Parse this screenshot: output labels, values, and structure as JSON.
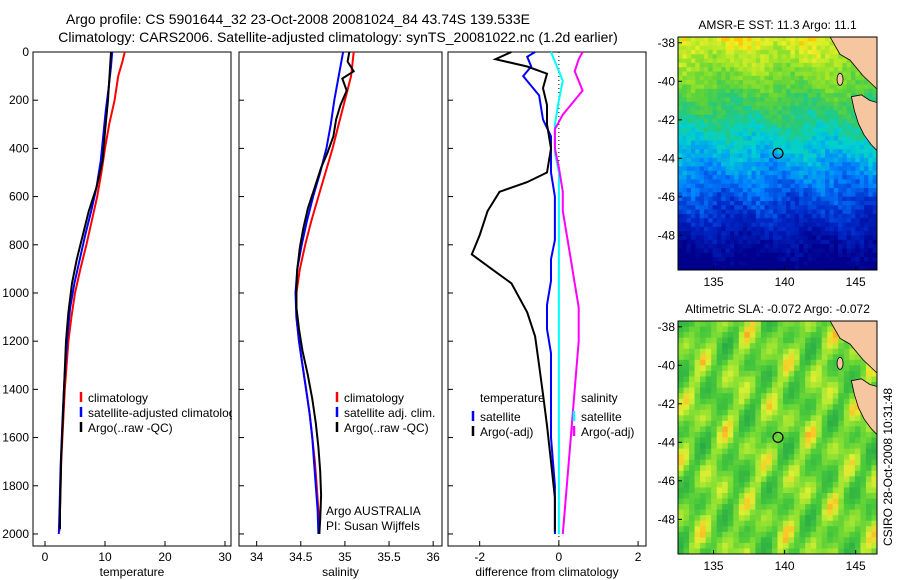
{
  "header": {
    "title_line1": "Argo profile: CS 5901644_32 23-Oct-2008 20081024_84 43.74S 139.533E",
    "title_line2": "Climatology: CARS2006. Satellite-adjusted climatology: synTS_20081022.nc (1.2d earlier)"
  },
  "side_label": "CSIRO 28-Oct-2008 10:31:48",
  "colors": {
    "climatology": "#ff0000",
    "satellite": "#0000ff",
    "argo": "#000000",
    "salinity_satellite": "#00ffff",
    "salinity_argo": "#ff00ff",
    "land": "#f5c6a0"
  },
  "chart_data": [
    {
      "id": "temperature",
      "type": "line",
      "xlabel": "temperature",
      "ylabel": "",
      "xlim": [
        -2,
        31
      ],
      "ylim": [
        2050,
        0
      ],
      "xticks": [
        0,
        10,
        20,
        30
      ],
      "yticks": [
        0,
        200,
        400,
        600,
        800,
        1000,
        1200,
        1400,
        1600,
        1800,
        2000
      ],
      "legend": [
        "climatology",
        "satellite-adjusted climatology",
        "Argo(..raw -QC)"
      ],
      "series": [
        {
          "name": "climatology",
          "color": "#ff0000",
          "points": [
            [
              13.3,
              0
            ],
            [
              12.9,
              40
            ],
            [
              12.2,
              100
            ],
            [
              11.6,
              200
            ],
            [
              10.7,
              300
            ],
            [
              10.0,
              400
            ],
            [
              9.4,
              500
            ],
            [
              8.7,
              600
            ],
            [
              7.8,
              700
            ],
            [
              6.9,
              800
            ],
            [
              5.9,
              900
            ],
            [
              5.0,
              1000
            ],
            [
              4.4,
              1100
            ],
            [
              3.9,
              1200
            ],
            [
              3.6,
              1300
            ],
            [
              3.3,
              1400
            ],
            [
              3.1,
              1500
            ],
            [
              2.9,
              1600
            ],
            [
              2.7,
              1700
            ],
            [
              2.6,
              1800
            ],
            [
              2.5,
              1900
            ],
            [
              2.4,
              1990
            ]
          ]
        },
        {
          "name": "satellite-adjusted climatology",
          "color": "#0000ff",
          "points": [
            [
              11.2,
              0
            ],
            [
              11.0,
              60
            ],
            [
              10.6,
              150
            ],
            [
              10.1,
              250
            ],
            [
              9.7,
              350
            ],
            [
              9.3,
              450
            ],
            [
              8.6,
              560
            ],
            [
              7.7,
              660
            ],
            [
              6.7,
              760
            ],
            [
              5.8,
              860
            ],
            [
              4.9,
              960
            ],
            [
              4.2,
              1060
            ],
            [
              3.8,
              1160
            ],
            [
              3.5,
              1260
            ],
            [
              3.2,
              1380
            ],
            [
              3.0,
              1480
            ],
            [
              2.8,
              1600
            ],
            [
              2.6,
              1720
            ],
            [
              2.5,
              1820
            ],
            [
              2.4,
              1920
            ],
            [
              2.3,
              2000
            ]
          ]
        },
        {
          "name": "Argo(..raw -QC)",
          "color": "#000000",
          "points": [
            [
              11.0,
              0
            ],
            [
              10.8,
              80
            ],
            [
              10.5,
              200
            ],
            [
              10.0,
              330
            ],
            [
              9.6,
              450
            ],
            [
              8.6,
              560
            ],
            [
              7.3,
              660
            ],
            [
              6.3,
              760
            ],
            [
              5.3,
              860
            ],
            [
              4.5,
              960
            ],
            [
              3.9,
              1080
            ],
            [
              3.5,
              1200
            ],
            [
              3.3,
              1320
            ],
            [
              3.1,
              1440
            ],
            [
              2.9,
              1560
            ],
            [
              2.7,
              1680
            ],
            [
              2.6,
              1800
            ],
            [
              2.5,
              1900
            ],
            [
              2.5,
              1980
            ]
          ]
        }
      ]
    },
    {
      "id": "salinity",
      "type": "line",
      "xlabel": "salinity",
      "ylabel": "",
      "xlim": [
        33.8,
        36.1
      ],
      "ylim": [
        2050,
        0
      ],
      "xticks": [
        34,
        34.5,
        35,
        35.5,
        36
      ],
      "legend": [
        "climatology",
        "satellite adj. clim.",
        "Argo(..raw -QC)"
      ],
      "annotation": [
        "Argo AUSTRALIA",
        "PI: Susan Wijffels"
      ],
      "series": [
        {
          "name": "climatology",
          "color": "#ff0000",
          "points": [
            [
              35.1,
              0
            ],
            [
              35.07,
              100
            ],
            [
              35.0,
              200
            ],
            [
              34.93,
              300
            ],
            [
              34.86,
              400
            ],
            [
              34.78,
              500
            ],
            [
              34.7,
              600
            ],
            [
              34.62,
              700
            ],
            [
              34.55,
              800
            ],
            [
              34.49,
              900
            ],
            [
              34.45,
              1000
            ],
            [
              34.45,
              1100
            ],
            [
              34.48,
              1200
            ],
            [
              34.52,
              1300
            ],
            [
              34.56,
              1400
            ],
            [
              34.6,
              1500
            ],
            [
              34.63,
              1600
            ],
            [
              34.66,
              1700
            ],
            [
              34.68,
              1800
            ],
            [
              34.7,
              1900
            ],
            [
              34.71,
              2000
            ]
          ]
        },
        {
          "name": "satellite adj. clim.",
          "color": "#0000ff",
          "points": [
            [
              34.98,
              0
            ],
            [
              34.93,
              100
            ],
            [
              34.88,
              200
            ],
            [
              34.84,
              300
            ],
            [
              34.79,
              400
            ],
            [
              34.72,
              500
            ],
            [
              34.64,
              600
            ],
            [
              34.57,
              700
            ],
            [
              34.51,
              800
            ],
            [
              34.46,
              900
            ],
            [
              34.44,
              1000
            ],
            [
              34.45,
              1100
            ],
            [
              34.48,
              1200
            ],
            [
              34.52,
              1300
            ],
            [
              34.56,
              1400
            ],
            [
              34.6,
              1500
            ],
            [
              34.63,
              1600
            ],
            [
              34.65,
              1700
            ],
            [
              34.67,
              1800
            ],
            [
              34.69,
              1900
            ],
            [
              34.7,
              2000
            ]
          ]
        },
        {
          "name": "Argo(..raw -QC)",
          "color": "#000000",
          "points": [
            [
              35.05,
              0
            ],
            [
              35.03,
              40
            ],
            [
              35.1,
              80
            ],
            [
              34.97,
              110
            ],
            [
              35.02,
              160
            ],
            [
              34.95,
              220
            ],
            [
              34.9,
              280
            ],
            [
              34.87,
              350
            ],
            [
              34.8,
              420
            ],
            [
              34.73,
              480
            ],
            [
              34.66,
              560
            ],
            [
              34.58,
              650
            ],
            [
              34.53,
              730
            ],
            [
              34.49,
              810
            ],
            [
              34.46,
              900
            ],
            [
              34.45,
              980
            ],
            [
              34.45,
              1060
            ],
            [
              34.48,
              1150
            ],
            [
              34.52,
              1240
            ],
            [
              34.58,
              1340
            ],
            [
              34.63,
              1440
            ],
            [
              34.67,
              1540
            ],
            [
              34.7,
              1640
            ],
            [
              34.72,
              1740
            ],
            [
              34.73,
              1840
            ],
            [
              34.72,
              1940
            ],
            [
              34.71,
              2000
            ]
          ]
        }
      ]
    },
    {
      "id": "difference",
      "type": "line",
      "xlabel": "difference from climatology",
      "ylabel": "",
      "xlim": [
        -2.8,
        2.2
      ],
      "ylim": [
        2050,
        0
      ],
      "xticks": [
        -2,
        0,
        2
      ],
      "legend_groups": [
        {
          "header": "temperature",
          "items": [
            "satellite",
            "Argo(-adj)"
          ]
        },
        {
          "header": "salinity",
          "items": [
            "satellite",
            "Argo(-adj)"
          ]
        }
      ],
      "series": [
        {
          "name": "temperature satellite",
          "color": "#0000ff",
          "points": [
            [
              -0.6,
              0
            ],
            [
              -0.8,
              20
            ],
            [
              -0.7,
              60
            ],
            [
              -0.9,
              100
            ],
            [
              -0.5,
              180
            ],
            [
              -0.4,
              280
            ],
            [
              -0.2,
              350
            ],
            [
              -0.2,
              420
            ],
            [
              -0.2,
              500
            ],
            [
              -0.1,
              600
            ],
            [
              -0.1,
              700
            ],
            [
              -0.1,
              780
            ],
            [
              -0.2,
              860
            ],
            [
              -0.2,
              950
            ],
            [
              -0.3,
              1050
            ],
            [
              -0.3,
              1150
            ],
            [
              -0.2,
              1250
            ],
            [
              -0.2,
              1400
            ],
            [
              -0.2,
              1600
            ],
            [
              -0.1,
              1800
            ],
            [
              -0.1,
              2000
            ]
          ]
        },
        {
          "name": "temperature Argo(-adj)",
          "color": "#000000",
          "points": [
            [
              -1.2,
              0
            ],
            [
              -1.6,
              30
            ],
            [
              -0.8,
              60
            ],
            [
              -0.3,
              90
            ],
            [
              -0.4,
              150
            ],
            [
              -0.3,
              220
            ],
            [
              -0.3,
              300
            ],
            [
              -0.2,
              400
            ],
            [
              -0.3,
              500
            ],
            [
              -0.8,
              540
            ],
            [
              -1.5,
              580
            ],
            [
              -1.8,
              660
            ],
            [
              -2.0,
              760
            ],
            [
              -2.2,
              840
            ],
            [
              -1.7,
              900
            ],
            [
              -1.2,
              960
            ],
            [
              -0.8,
              1080
            ],
            [
              -0.6,
              1180
            ],
            [
              -0.5,
              1300
            ],
            [
              -0.4,
              1420
            ],
            [
              -0.3,
              1550
            ],
            [
              -0.2,
              1700
            ],
            [
              -0.1,
              1850
            ],
            [
              -0.1,
              1990
            ]
          ]
        },
        {
          "name": "salinity satellite",
          "color": "#00ffff",
          "points": [
            [
              -0.2,
              0
            ],
            [
              -0.1,
              40
            ],
            [
              0.0,
              80
            ],
            [
              0.1,
              120
            ],
            [
              0.0,
              200
            ],
            [
              -0.1,
              300
            ],
            [
              -0.1,
              420
            ],
            [
              0.0,
              500
            ],
            [
              0.0,
              600
            ],
            [
              0.0,
              700
            ],
            [
              0.0,
              800
            ],
            [
              0.0,
              900
            ],
            [
              0.0,
              1000
            ],
            [
              0.0,
              1200
            ],
            [
              0.0,
              1400
            ],
            [
              0.0,
              1600
            ],
            [
              0.0,
              1800
            ],
            [
              0.0,
              2000
            ]
          ]
        },
        {
          "name": "salinity Argo(-adj)",
          "color": "#ff00ff",
          "points": [
            [
              0.6,
              0
            ],
            [
              0.5,
              30
            ],
            [
              0.4,
              80
            ],
            [
              0.5,
              120
            ],
            [
              0.6,
              160
            ],
            [
              0.4,
              200
            ],
            [
              0.1,
              260
            ],
            [
              -0.1,
              320
            ],
            [
              -0.1,
              400
            ],
            [
              0.0,
              480
            ],
            [
              0.1,
              580
            ],
            [
              0.1,
              660
            ],
            [
              0.2,
              760
            ],
            [
              0.3,
              860
            ],
            [
              0.4,
              960
            ],
            [
              0.5,
              1060
            ],
            [
              0.5,
              1200
            ],
            [
              0.4,
              1400
            ],
            [
              0.3,
              1600
            ],
            [
              0.2,
              1800
            ],
            [
              0.1,
              2000
            ]
          ]
        }
      ]
    },
    {
      "id": "sst_map",
      "type": "heatmap",
      "title": "AMSR-E SST: 11.3 Argo: 11.1",
      "xlim": [
        132.5,
        146.5
      ],
      "ylim": [
        -49.8,
        -37.7
      ],
      "xticks": [
        135,
        140,
        145
      ],
      "yticks": [
        -38,
        -40,
        -42,
        -44,
        -46,
        -48
      ],
      "marker": {
        "lon": 139.533,
        "lat": -43.74
      }
    },
    {
      "id": "sla_map",
      "type": "heatmap",
      "title": "Altimetric SLA: -0.072 Argo: -0.072",
      "xlim": [
        132.5,
        146.5
      ],
      "ylim": [
        -49.8,
        -37.7
      ],
      "xticks": [
        135,
        140,
        145
      ],
      "yticks": [
        -38,
        -40,
        -42,
        -44,
        -46,
        -48
      ],
      "marker": {
        "lon": 139.533,
        "lat": -43.74
      }
    }
  ]
}
